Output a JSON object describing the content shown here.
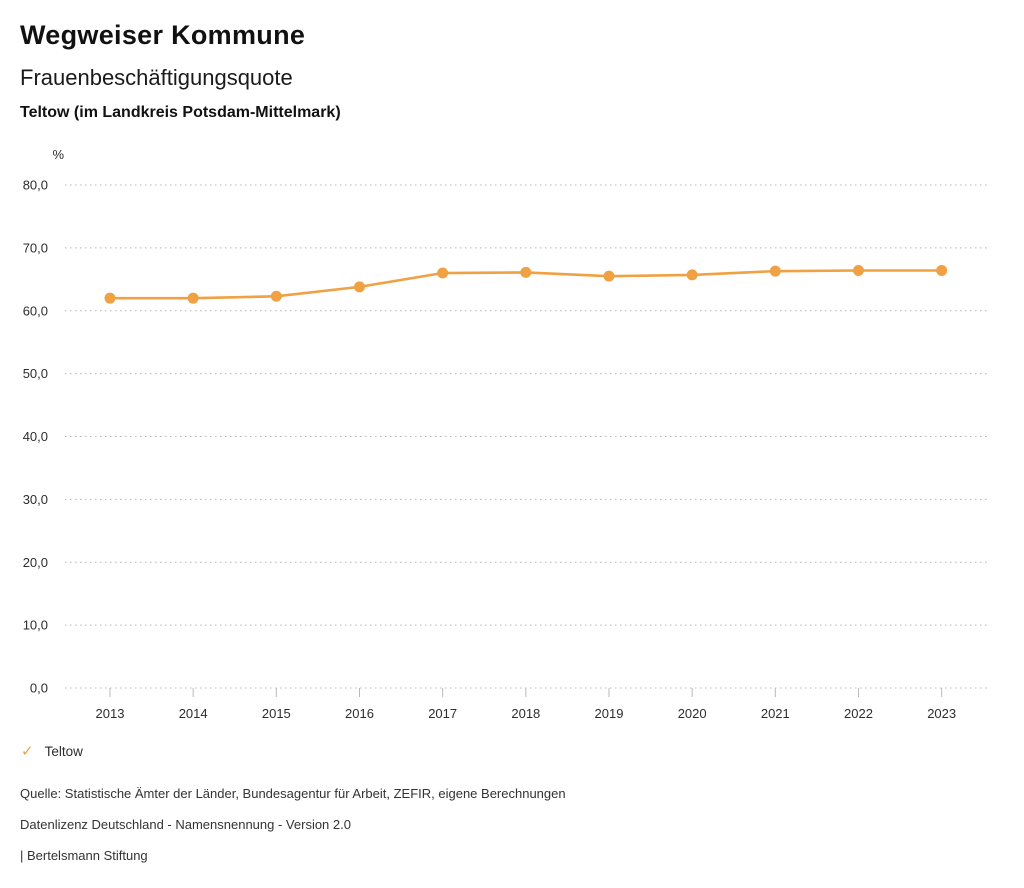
{
  "header": {
    "title": "Wegweiser Kommune",
    "subtitle": "Frauenbeschäftigungsquote",
    "location": "Teltow (im Landkreis Potsdam-Mittelmark)"
  },
  "legend": {
    "check_icon": "✓",
    "label": "Teltow",
    "color": "#efa143"
  },
  "footer": {
    "source": "Quelle: Statistische Ämter der Länder, Bundesagentur für Arbeit, ZEFIR, eigene Berechnungen",
    "license": "Datenlizenz Deutschland - Namensnennung - Version 2.0",
    "attribution": "| Bertelsmann Stiftung"
  },
  "chart_data": {
    "type": "line",
    "title": "Frauenbeschäftigungsquote",
    "subtitle": "Teltow (im Landkreis Potsdam-Mittelmark)",
    "unit_label": "%",
    "categories": [
      "2013",
      "2014",
      "2015",
      "2016",
      "2017",
      "2018",
      "2019",
      "2020",
      "2021",
      "2022",
      "2023"
    ],
    "series": [
      {
        "name": "Teltow",
        "color": "#efa143",
        "values": [
          62.0,
          62.0,
          62.3,
          63.8,
          66.0,
          66.1,
          65.5,
          65.7,
          66.3,
          66.4,
          66.4
        ]
      }
    ],
    "ylim": [
      0,
      80
    ],
    "yticks": [
      {
        "value": 80,
        "label": "80,0"
      },
      {
        "value": 70,
        "label": "70,0"
      },
      {
        "value": 60,
        "label": "60,0"
      },
      {
        "value": 50,
        "label": "50,0"
      },
      {
        "value": 40,
        "label": "40,0"
      },
      {
        "value": 30,
        "label": "30,0"
      },
      {
        "value": 20,
        "label": "20,0"
      },
      {
        "value": 10,
        "label": "10,0"
      },
      {
        "value": 0,
        "label": "0,0"
      }
    ],
    "grid": "horizontal-dotted",
    "legend_position": "bottom-left"
  }
}
